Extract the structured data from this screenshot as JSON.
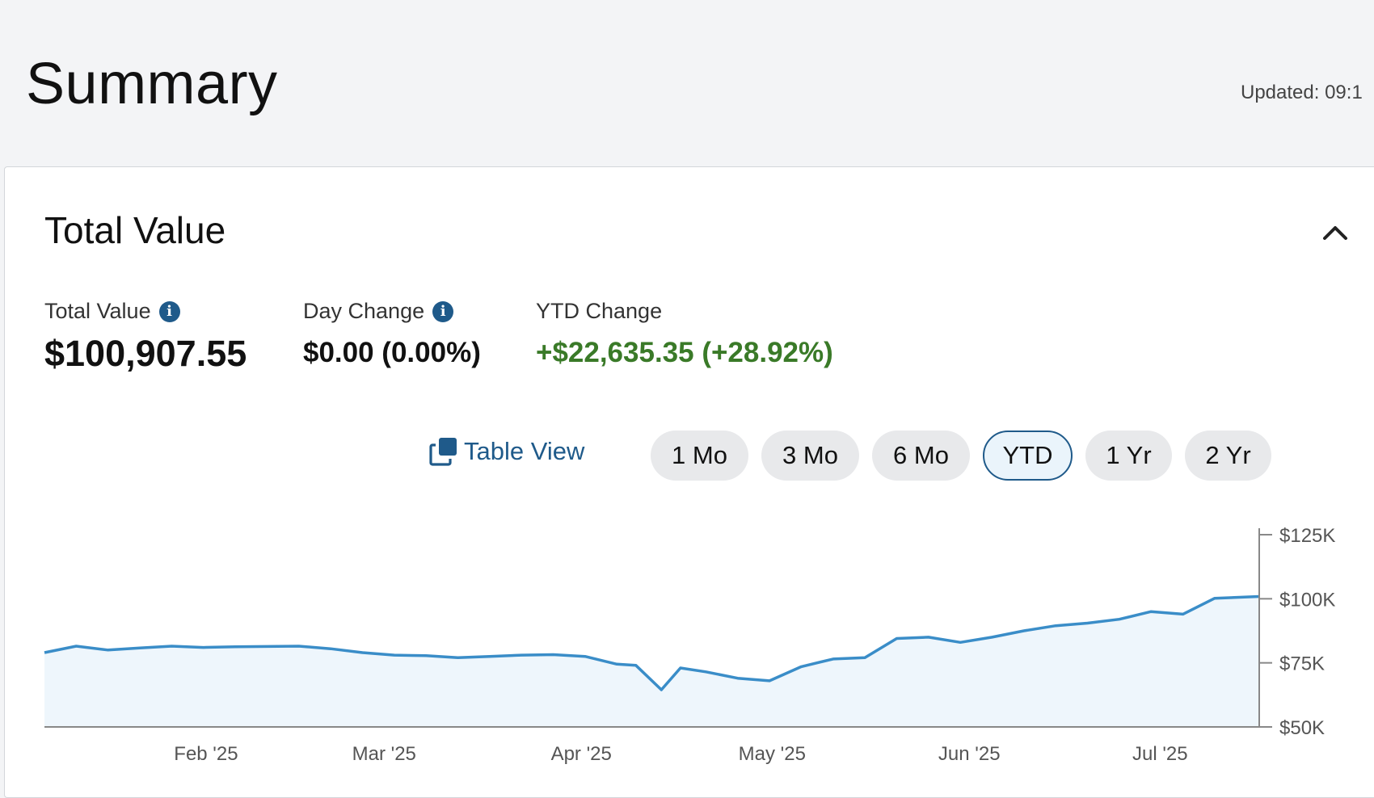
{
  "header": {
    "title": "Summary",
    "updated": "Updated: 09:1"
  },
  "card": {
    "title": "Total Value",
    "metrics": {
      "total_label": "Total Value",
      "total_value": "$100,907.55",
      "day_label": "Day Change",
      "day_value": "$0.00 (0.00%)",
      "ytd_label": "YTD Change",
      "ytd_value": "+$22,635.35 (+28.92%)"
    },
    "table_view_label": "Table View",
    "ranges": [
      "1 Mo",
      "3 Mo",
      "6 Mo",
      "YTD",
      "1 Yr",
      "2 Yr"
    ],
    "active_range": "YTD"
  },
  "colors": {
    "accent": "#1f5a8a",
    "positive": "#3a7a28",
    "line": "#3a8dc8",
    "area": "#eef6fc"
  },
  "icons": {
    "info": "info-icon",
    "collapse": "chevron-up-icon",
    "table_view": "table-view-icon"
  },
  "chart_data": {
    "type": "area",
    "title": "",
    "xlabel": "",
    "ylabel": "",
    "x_ticks": [
      "Feb '25",
      "Mar '25",
      "Apr '25",
      "May '25",
      "Jun '25",
      "Jul '25"
    ],
    "y_ticks": [
      "$125K",
      "$100K",
      "$75K",
      "$50K"
    ],
    "ylim": [
      50000,
      125000
    ],
    "xlim": [
      "2025-01-01",
      "2025-07-11"
    ],
    "x": [
      "2025-01-01",
      "2025-01-06",
      "2025-01-11",
      "2025-01-16",
      "2025-01-21",
      "2025-01-26",
      "2025-01-31",
      "2025-02-05",
      "2025-02-10",
      "2025-02-15",
      "2025-02-20",
      "2025-02-25",
      "2025-03-02",
      "2025-03-07",
      "2025-03-12",
      "2025-03-17",
      "2025-03-22",
      "2025-03-27",
      "2025-04-01",
      "2025-04-04",
      "2025-04-08",
      "2025-04-11",
      "2025-04-15",
      "2025-04-20",
      "2025-04-25",
      "2025-04-30",
      "2025-05-05",
      "2025-05-10",
      "2025-05-15",
      "2025-05-20",
      "2025-05-25",
      "2025-05-30",
      "2025-06-04",
      "2025-06-09",
      "2025-06-14",
      "2025-06-19",
      "2025-06-24",
      "2025-06-29",
      "2025-07-04",
      "2025-07-11"
    ],
    "series": [
      {
        "values": [
          79000,
          81500,
          80000,
          80800,
          81500,
          81000,
          81300,
          81400,
          81500,
          80500,
          79000,
          78000,
          77800,
          77000,
          77500,
          78000,
          78200,
          77500,
          74500,
          74000,
          64500,
          73000,
          71500,
          69000,
          68000,
          73500,
          76500,
          77000,
          84500,
          85000,
          83000,
          85000,
          87500,
          89500,
          90500,
          92000,
          95000,
          94000,
          100200,
          100900
        ]
      }
    ],
    "grid": false,
    "legend": "none"
  }
}
